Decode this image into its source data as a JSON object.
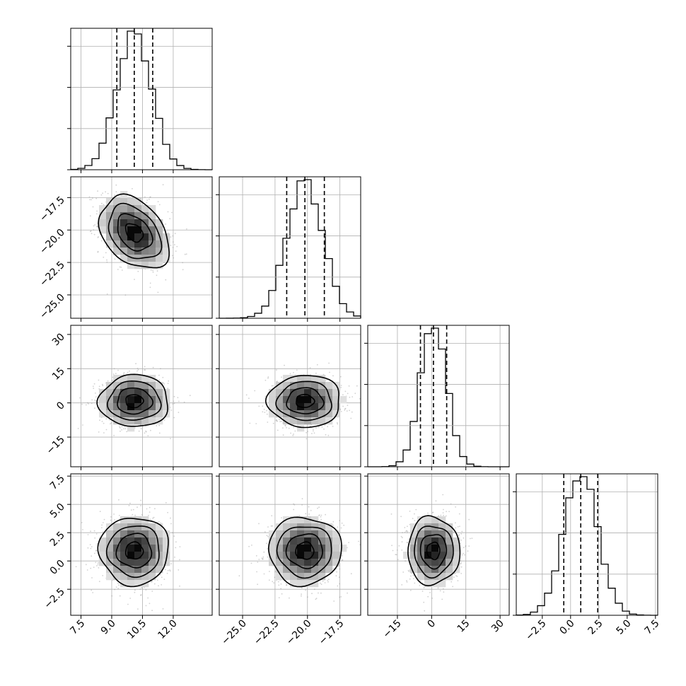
{
  "chart_data": {
    "type": "corner",
    "title": "",
    "grid": true,
    "parameters": [
      {
        "index": 0,
        "label": "",
        "lim": [
          7.0,
          13.9
        ],
        "ticks": [
          7.5,
          9.0,
          10.5,
          12.0
        ],
        "tick_labels": [
          "7.5",
          "9.0",
          "10.5",
          "12.0"
        ],
        "mean": 10.1,
        "sigma": 0.85,
        "quantiles": [
          9.25,
          10.1,
          11.0
        ]
      },
      {
        "index": 1,
        "label": "",
        "lim": [
          -26.8,
          -15.9
        ],
        "ticks": [
          -25.0,
          -22.5,
          -20.0,
          -17.5
        ],
        "tick_labels": [
          "-25.0",
          "-22.5",
          "-20.0",
          "-17.5"
        ],
        "mean": -20.2,
        "sigma": 1.4,
        "quantiles": [
          -21.6,
          -20.2,
          -18.7
        ]
      },
      {
        "index": 2,
        "label": "",
        "lim": [
          -28,
          34
        ],
        "ticks": [
          -15,
          0,
          15,
          30
        ],
        "tick_labels": [
          "-15",
          "0",
          "15",
          "30"
        ],
        "mean": 0.8,
        "sigma": 5.7,
        "quantiles": [
          -4.9,
          0.8,
          6.6
        ]
      },
      {
        "index": 3,
        "label": "",
        "lim": [
          -4.8,
          7.7
        ],
        "ticks": [
          -2.5,
          0.0,
          2.5,
          5.0,
          7.5
        ],
        "tick_labels": [
          "-2.5",
          "0.0",
          "2.5",
          "5.0",
          "7.5"
        ],
        "mean": 0.9,
        "sigma": 1.5,
        "quantiles": [
          -0.6,
          0.9,
          2.4
        ]
      }
    ],
    "pair_correlations": [
      {
        "x": 0,
        "y": 1,
        "rho": -0.35
      },
      {
        "x": 0,
        "y": 2,
        "rho": 0.0
      },
      {
        "x": 1,
        "y": 2,
        "rho": 0.0
      },
      {
        "x": 0,
        "y": 3,
        "rho": 0.0
      },
      {
        "x": 1,
        "y": 3,
        "rho": 0.0
      },
      {
        "x": 2,
        "y": 3,
        "rho": 0.0
      }
    ],
    "contour_levels": [
      "0.5 sigma",
      "1 sigma",
      "1.5 sigma",
      "2 sigma"
    ],
    "histogram_bins": 20,
    "colors": {
      "ink": "#000000",
      "grid": "#b0b0b0",
      "scatter": "#9a9a9a"
    }
  }
}
